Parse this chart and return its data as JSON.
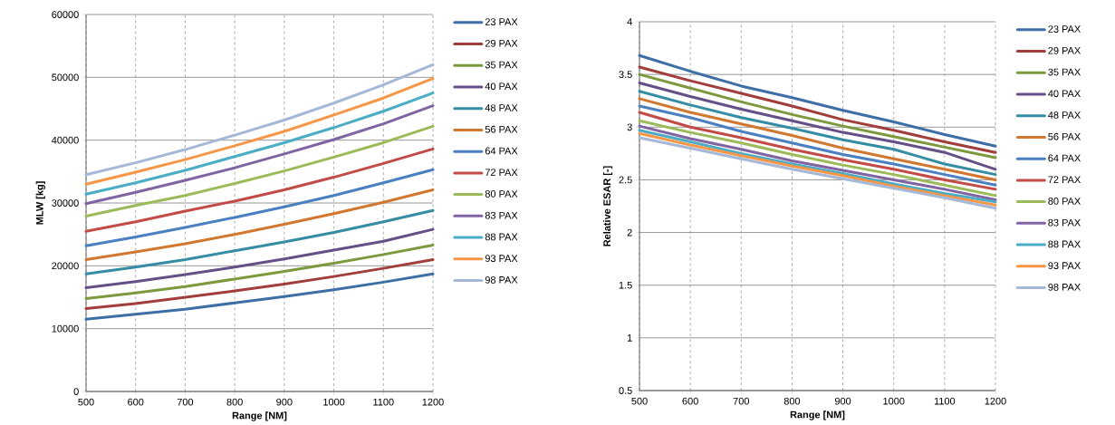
{
  "chart_data": [
    {
      "type": "line",
      "xlabel": "Range [NM]",
      "ylabel": "MLW [kg]",
      "x": [
        500,
        600,
        700,
        800,
        900,
        1000,
        1100,
        1200
      ],
      "xlim": [
        500,
        1200
      ],
      "xticks": [
        500,
        600,
        700,
        800,
        900,
        1000,
        1100,
        1200
      ],
      "ylim": [
        0,
        60000
      ],
      "yticks": [
        0,
        10000,
        20000,
        30000,
        40000,
        50000,
        60000
      ],
      "grid": true,
      "legend": "right",
      "line_style": "solid",
      "marker": "none",
      "series": [
        {
          "name": "23 PAX",
          "color": "#3d6ea6",
          "values": [
            11500,
            12300,
            13100,
            14100,
            15100,
            16200,
            17400,
            18700
          ]
        },
        {
          "name": "29 PAX",
          "color": "#a13d3a",
          "values": [
            13200,
            14000,
            15000,
            16000,
            17100,
            18300,
            19600,
            21000
          ]
        },
        {
          "name": "35 PAX",
          "color": "#7c9a3d",
          "values": [
            14800,
            15700,
            16700,
            17900,
            19100,
            20400,
            21800,
            23300
          ]
        },
        {
          "name": "40 PAX",
          "color": "#644f86",
          "values": [
            16500,
            17500,
            18600,
            19800,
            21100,
            22500,
            23900,
            25800
          ]
        },
        {
          "name": "48 PAX",
          "color": "#358da3",
          "values": [
            18700,
            19800,
            21000,
            22400,
            23800,
            25300,
            27000,
            28800
          ]
        },
        {
          "name": "56 PAX",
          "color": "#d1772f",
          "values": [
            21000,
            22200,
            23500,
            25000,
            26600,
            28300,
            30100,
            32100
          ]
        },
        {
          "name": "64 PAX",
          "color": "#4a7fc1",
          "values": [
            23200,
            24600,
            26100,
            27700,
            29400,
            31200,
            33200,
            35300
          ]
        },
        {
          "name": "72 PAX",
          "color": "#c24b48",
          "values": [
            25500,
            27000,
            28700,
            30300,
            32100,
            34100,
            36300,
            38600
          ]
        },
        {
          "name": "80 PAX",
          "color": "#9bbb59",
          "values": [
            27900,
            29600,
            31200,
            33100,
            35100,
            37300,
            39600,
            42200
          ]
        },
        {
          "name": "83 PAX",
          "color": "#8064a2",
          "values": [
            29900,
            31700,
            33600,
            35600,
            37800,
            40100,
            42600,
            45500
          ]
        },
        {
          "name": "88 PAX",
          "color": "#4bacc6",
          "values": [
            31400,
            33200,
            35200,
            37400,
            39600,
            42000,
            44600,
            47500
          ]
        },
        {
          "name": "93 PAX",
          "color": "#f79646",
          "values": [
            33000,
            34900,
            36900,
            39100,
            41400,
            44000,
            46700,
            49800
          ]
        },
        {
          "name": "98 PAX",
          "color": "#a5b8d7",
          "values": [
            34500,
            36400,
            38500,
            40800,
            43200,
            45900,
            48800,
            52000
          ]
        }
      ]
    },
    {
      "type": "line",
      "xlabel": "Range [NM]",
      "ylabel": "Relative ESAR [-]",
      "x": [
        500,
        600,
        700,
        800,
        900,
        1000,
        1100,
        1200
      ],
      "xlim": [
        500,
        1200
      ],
      "xticks": [
        500,
        600,
        700,
        800,
        900,
        1000,
        1100,
        1200
      ],
      "ylim": [
        0.5,
        4
      ],
      "yticks": [
        0.5,
        1,
        1.5,
        2,
        2.5,
        3,
        3.5,
        4
      ],
      "grid": true,
      "legend": "right",
      "line_style": "solid",
      "marker": "none",
      "series": [
        {
          "name": "23 PAX",
          "color": "#3d6ea6",
          "values": [
            3.68,
            3.53,
            3.39,
            3.28,
            3.16,
            3.05,
            2.93,
            2.82
          ]
        },
        {
          "name": "29 PAX",
          "color": "#a13d3a",
          "values": [
            3.57,
            3.44,
            3.32,
            3.2,
            3.07,
            2.97,
            2.86,
            2.76
          ]
        },
        {
          "name": "35 PAX",
          "color": "#7c9a3d",
          "values": [
            3.5,
            3.37,
            3.24,
            3.12,
            3.01,
            2.91,
            2.81,
            2.71
          ]
        },
        {
          "name": "40 PAX",
          "color": "#644f86",
          "values": [
            3.42,
            3.29,
            3.17,
            3.06,
            2.95,
            2.86,
            2.76,
            2.6
          ]
        },
        {
          "name": "48 PAX",
          "color": "#358da3",
          "values": [
            3.34,
            3.21,
            3.09,
            2.99,
            2.88,
            2.79,
            2.65,
            2.55
          ]
        },
        {
          "name": "56 PAX",
          "color": "#d1772f",
          "values": [
            3.27,
            3.14,
            3.03,
            2.92,
            2.8,
            2.7,
            2.6,
            2.5
          ]
        },
        {
          "name": "64 PAX",
          "color": "#4a7fc1",
          "values": [
            3.2,
            3.09,
            2.96,
            2.85,
            2.74,
            2.65,
            2.55,
            2.45
          ]
        },
        {
          "name": "72 PAX",
          "color": "#c24b48",
          "values": [
            3.14,
            3.0,
            2.9,
            2.79,
            2.69,
            2.6,
            2.5,
            2.41
          ]
        },
        {
          "name": "80 PAX",
          "color": "#9bbb59",
          "values": [
            3.06,
            2.95,
            2.85,
            2.74,
            2.64,
            2.55,
            2.45,
            2.35
          ]
        },
        {
          "name": "83 PAX",
          "color": "#8064a2",
          "values": [
            3.01,
            2.89,
            2.79,
            2.68,
            2.59,
            2.5,
            2.41,
            2.31
          ]
        },
        {
          "name": "88 PAX",
          "color": "#4bacc6",
          "values": [
            2.97,
            2.86,
            2.75,
            2.65,
            2.56,
            2.46,
            2.37,
            2.29
          ]
        },
        {
          "name": "93 PAX",
          "color": "#f79646",
          "values": [
            2.94,
            2.83,
            2.73,
            2.63,
            2.54,
            2.44,
            2.35,
            2.26
          ]
        },
        {
          "name": "98 PAX",
          "color": "#a5b8d7",
          "values": [
            2.9,
            2.8,
            2.7,
            2.6,
            2.51,
            2.42,
            2.33,
            2.23
          ]
        }
      ]
    }
  ]
}
